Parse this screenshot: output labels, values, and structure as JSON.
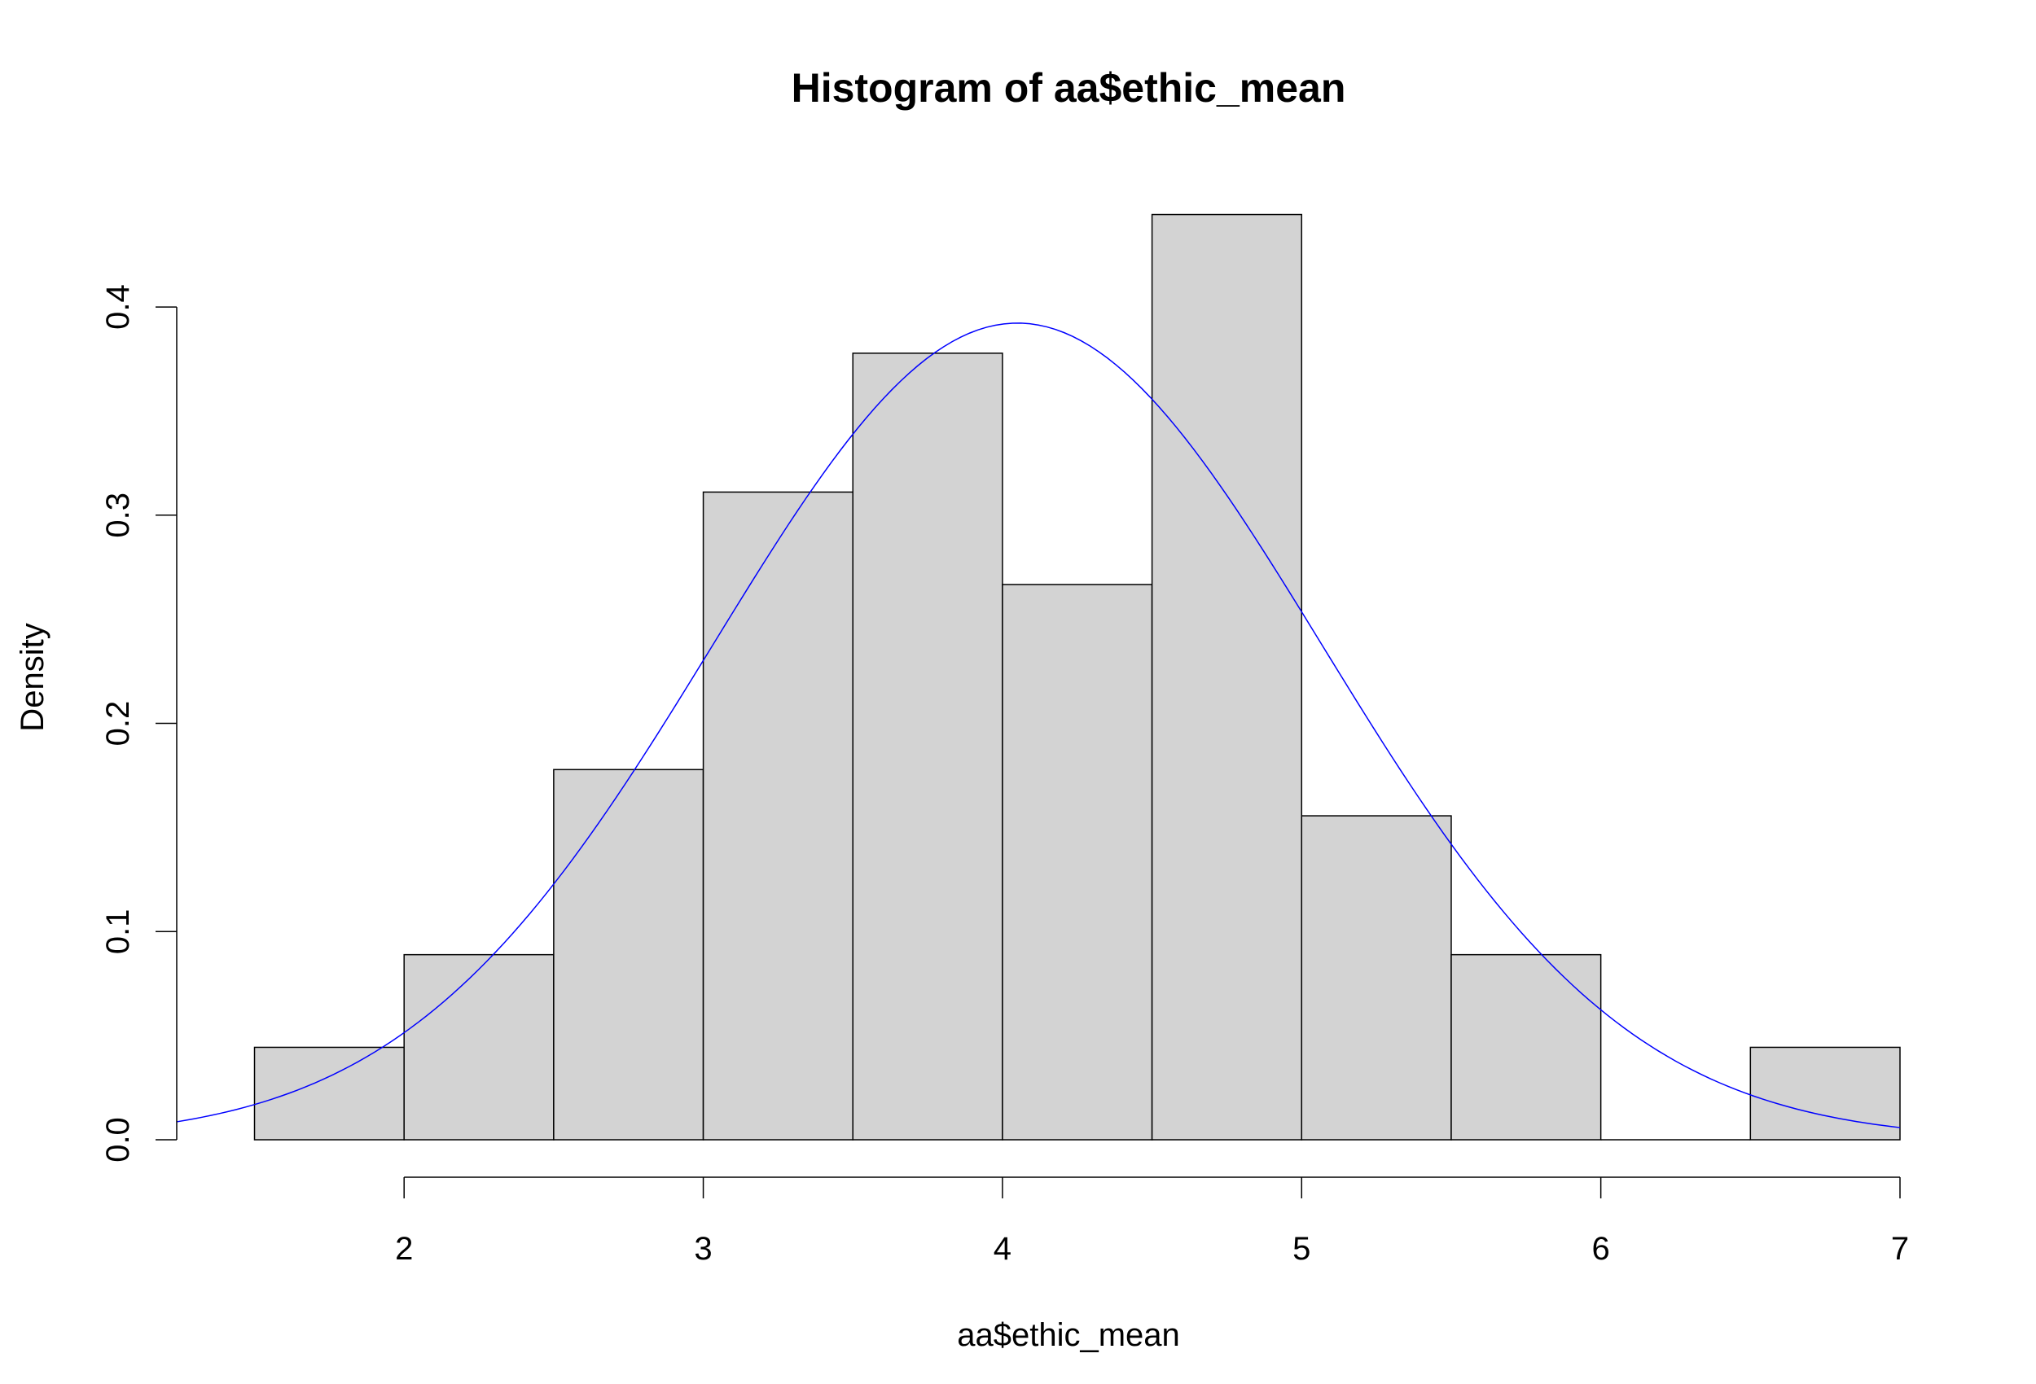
{
  "chart_data": {
    "type": "bar",
    "subtype": "histogram-with-density-curve",
    "title": "Histogram of aa$ethic_mean",
    "xlabel": "aa$ethic_mean",
    "ylabel": "Density",
    "xlim": [
      1.24,
      7.0
    ],
    "ylim": [
      0,
      0.445
    ],
    "x_ticks": [
      2,
      3,
      4,
      5,
      6,
      7
    ],
    "y_ticks": [
      0.0,
      0.1,
      0.2,
      0.3,
      0.4
    ],
    "x_tick_labels": [
      "2",
      "3",
      "4",
      "5",
      "6",
      "7"
    ],
    "y_tick_labels": [
      "0.0",
      "0.1",
      "0.2",
      "0.3",
      "0.4"
    ],
    "bins": [
      {
        "from": 1.5,
        "to": 2.0,
        "density": 0.0444
      },
      {
        "from": 2.0,
        "to": 2.5,
        "density": 0.0889
      },
      {
        "from": 2.5,
        "to": 3.0,
        "density": 0.1778
      },
      {
        "from": 3.0,
        "to": 3.5,
        "density": 0.3111
      },
      {
        "from": 3.5,
        "to": 4.0,
        "density": 0.3778
      },
      {
        "from": 4.0,
        "to": 4.5,
        "density": 0.2667
      },
      {
        "from": 4.5,
        "to": 5.0,
        "density": 0.4444
      },
      {
        "from": 5.0,
        "to": 5.5,
        "density": 0.1556
      },
      {
        "from": 5.5,
        "to": 6.0,
        "density": 0.0889
      },
      {
        "from": 6.0,
        "to": 6.5,
        "density": 0.0
      },
      {
        "from": 6.5,
        "to": 7.0,
        "density": 0.0444
      }
    ],
    "density_curve": {
      "distribution": "normal",
      "mean": 4.05,
      "sd": 1.017,
      "x_range": [
        1.24,
        7.0
      ],
      "color": "#0000FF"
    },
    "bar_fill": "#D3D3D3",
    "bar_stroke": "#000000",
    "grid": false,
    "legend": "none"
  }
}
